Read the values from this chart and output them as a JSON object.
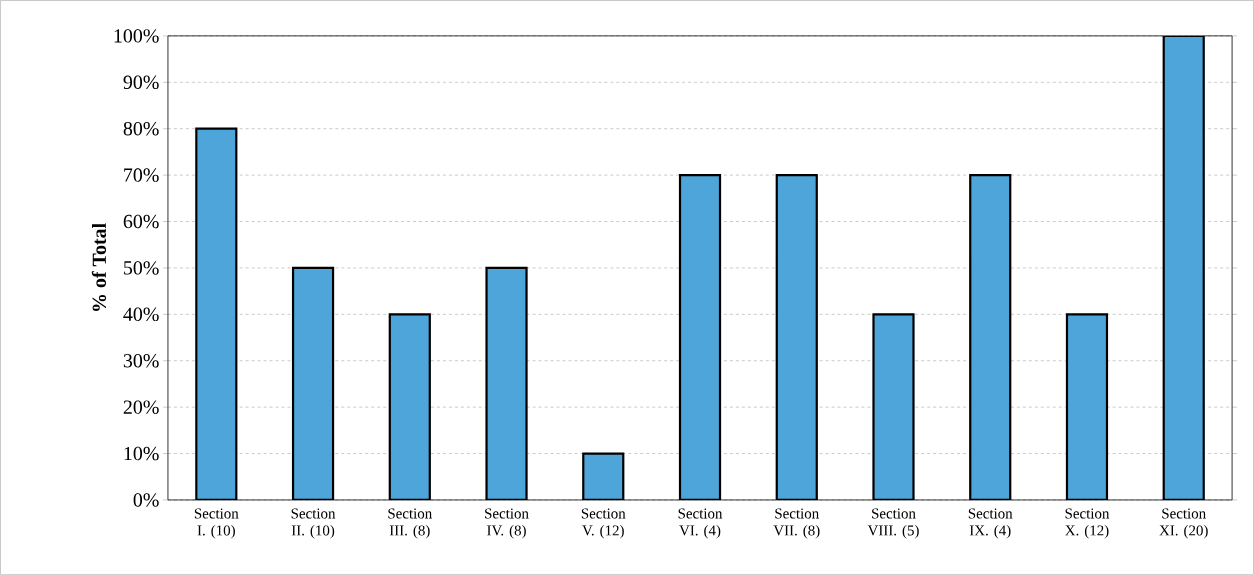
{
  "chart_data": {
    "type": "bar",
    "ylabel": "% of Total",
    "categories": [
      "Section I. (10)",
      "Section II. (10)",
      "Section III. (8)",
      "Section IV. (8)",
      "Section V. (12)",
      "Section VI. (4)",
      "Section VII. (8)",
      "Section VIII. (5)",
      "Section IX. (4)",
      "Section X. (12)",
      "Section XI. (20)"
    ],
    "values": [
      80,
      50,
      40,
      50,
      10,
      70,
      70,
      40,
      70,
      40,
      100
    ],
    "color": "#4ea5d9",
    "ylim": [
      0,
      100
    ],
    "yticks": [
      {
        "value": 0,
        "label": "0%"
      },
      {
        "value": 10,
        "label": "10%"
      },
      {
        "value": 20,
        "label": "20%"
      },
      {
        "value": 30,
        "label": "30%"
      },
      {
        "value": 40,
        "label": "40%"
      },
      {
        "value": 50,
        "label": "50%"
      },
      {
        "value": 60,
        "label": "60%"
      },
      {
        "value": 70,
        "label": "70%"
      },
      {
        "value": 80,
        "label": "80%"
      },
      {
        "value": 90,
        "label": "90%"
      },
      {
        "value": 100,
        "label": "100%"
      }
    ],
    "grid": "y"
  }
}
